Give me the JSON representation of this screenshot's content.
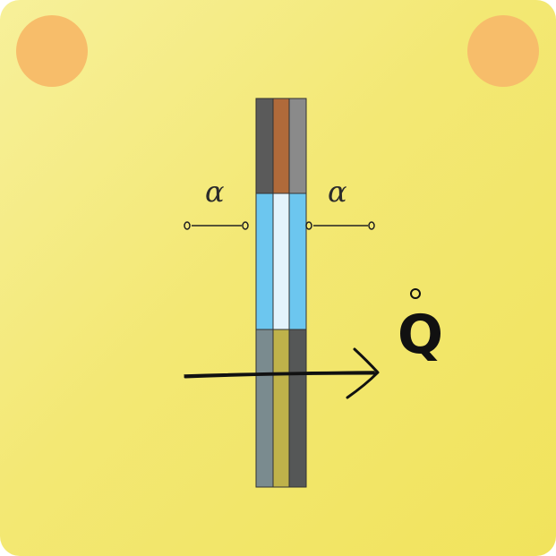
{
  "colors": {
    "dot": "#f7bd6a",
    "dark_gray": "#5a5a5a",
    "brown": "#b06a3a",
    "light_gray": "#8a8a8a",
    "blue": "#6cc6ef",
    "pale_blue": "#e4f3fc",
    "slate": "#7a8b8f",
    "olive": "#bfb24a",
    "charcoal": "#555757",
    "ink": "#111111"
  },
  "labels": {
    "alpha_left": "α",
    "alpha_right": "α",
    "heat_flow": "Q"
  },
  "icons": {
    "heat_arrow": "arrow-right-icon"
  }
}
